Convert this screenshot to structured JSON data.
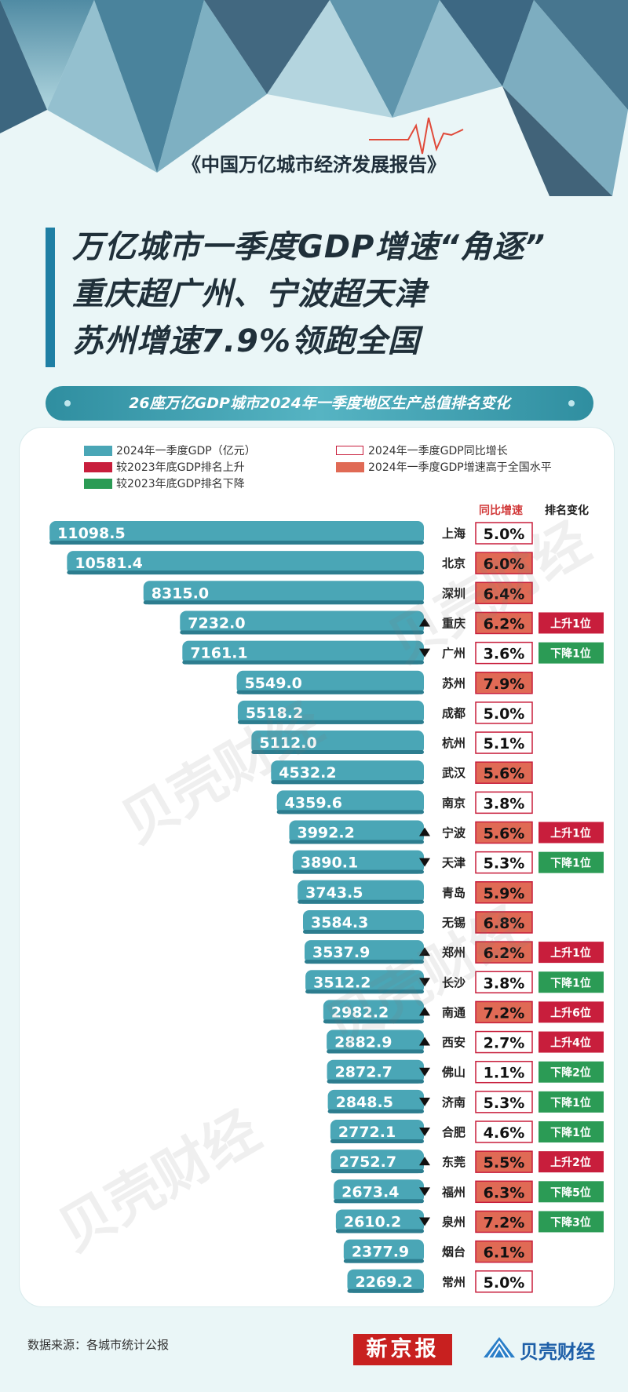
{
  "report_title": "《中国万亿城市经济发展报告》",
  "headline": [
    "万亿城市一季度GDP增速“角逐”",
    "重庆超广州、宁波超天津",
    "苏州增速7.9%领跑全国"
  ],
  "subtitle": "26座万亿GDP城市2024年一季度地区生产总值排名变化",
  "legend": {
    "gdp": "2024年一季度GDP（亿元）",
    "yoy": "2024年一季度GDP同比增长",
    "up": "较2023年底GDP排名上升",
    "above": "2024年一季度GDP增速高于全国水平",
    "down": "较2023年底GDP排名下降"
  },
  "columns": {
    "growth": "同比增速",
    "rank_change": "排名变化"
  },
  "colors": {
    "bar": "#4aa6b6",
    "up": "#c81e3c",
    "down": "#2b9b55",
    "above": "#e06a55",
    "title_red": "#d23b3b"
  },
  "chart_data": {
    "type": "bar",
    "title": "26座万亿GDP城市2024年一季度地区生产总值排名变化",
    "categories": [
      "上海",
      "北京",
      "深圳",
      "重庆",
      "广州",
      "苏州",
      "成都",
      "杭州",
      "武汉",
      "南京",
      "宁波",
      "天津",
      "青岛",
      "无锡",
      "郑州",
      "长沙",
      "南通",
      "西安",
      "佛山",
      "济南",
      "合肥",
      "东莞",
      "福州",
      "泉州",
      "烟台",
      "常州"
    ],
    "values": [
      11098.5,
      10581.4,
      8315.0,
      7232.0,
      7161.1,
      5549.0,
      5518.2,
      5112.0,
      4532.2,
      4359.6,
      3992.2,
      3890.1,
      3743.5,
      3584.3,
      3537.9,
      3512.2,
      2982.2,
      2882.9,
      2872.7,
      2848.5,
      2772.1,
      2752.7,
      2673.4,
      2610.2,
      2377.9,
      2269.2
    ],
    "value_labels": [
      "11098.5",
      "10581.4",
      "8315.0",
      "7232.0",
      "7161.1",
      "5549.0",
      "5518.2",
      "5112.0",
      "4532.2",
      "4359.6",
      "3992.2",
      "3890.1",
      "3743.5",
      "3584.3",
      "3537.9",
      "3512.2",
      "2982.2",
      "2882.9",
      "2872.7",
      "2848.5",
      "2772.1",
      "2752.7",
      "2673.4",
      "2610.2",
      "2377.9",
      "2269.2"
    ],
    "growth": [
      "5.0%",
      "6.0%",
      "6.4%",
      "6.2%",
      "3.6%",
      "7.9%",
      "5.0%",
      "5.1%",
      "5.6%",
      "3.8%",
      "5.6%",
      "5.3%",
      "5.9%",
      "6.8%",
      "6.2%",
      "3.8%",
      "7.2%",
      "2.7%",
      "1.1%",
      "5.3%",
      "4.6%",
      "5.5%",
      "6.3%",
      "7.2%",
      "6.1%",
      "5.0%"
    ],
    "growth_above_national": [
      false,
      true,
      true,
      true,
      false,
      true,
      false,
      false,
      true,
      false,
      true,
      false,
      true,
      true,
      true,
      false,
      true,
      false,
      false,
      false,
      false,
      true,
      true,
      true,
      true,
      false
    ],
    "rank_change": [
      "",
      "",
      "",
      "上升1位",
      "下降1位",
      "",
      "",
      "",
      "",
      "",
      "上升1位",
      "下降1位",
      "",
      "",
      "上升1位",
      "下降1位",
      "上升6位",
      "上升4位",
      "下降2位",
      "下降1位",
      "下降1位",
      "上升2位",
      "下降5位",
      "下降3位",
      "",
      ""
    ],
    "rank_change_labels": [
      "",
      "",
      "",
      "上升1位",
      "下降1位",
      "",
      "",
      "",
      "",
      "",
      "上升1位",
      "下降1位",
      "",
      "",
      "上升1位",
      "下降1位",
      "上升6位",
      "上升4位",
      "下降2位",
      "下降1位",
      "下降1位",
      "上升2位",
      "下降5位",
      "下降3位",
      "",
      ""
    ],
    "xlim": [
      0,
      11800
    ]
  },
  "footer": {
    "source": "数据来源：各城市统计公报",
    "logo_xjb": "新京报",
    "logo_bk": "贝壳财经"
  },
  "watermark": "贝壳财经"
}
